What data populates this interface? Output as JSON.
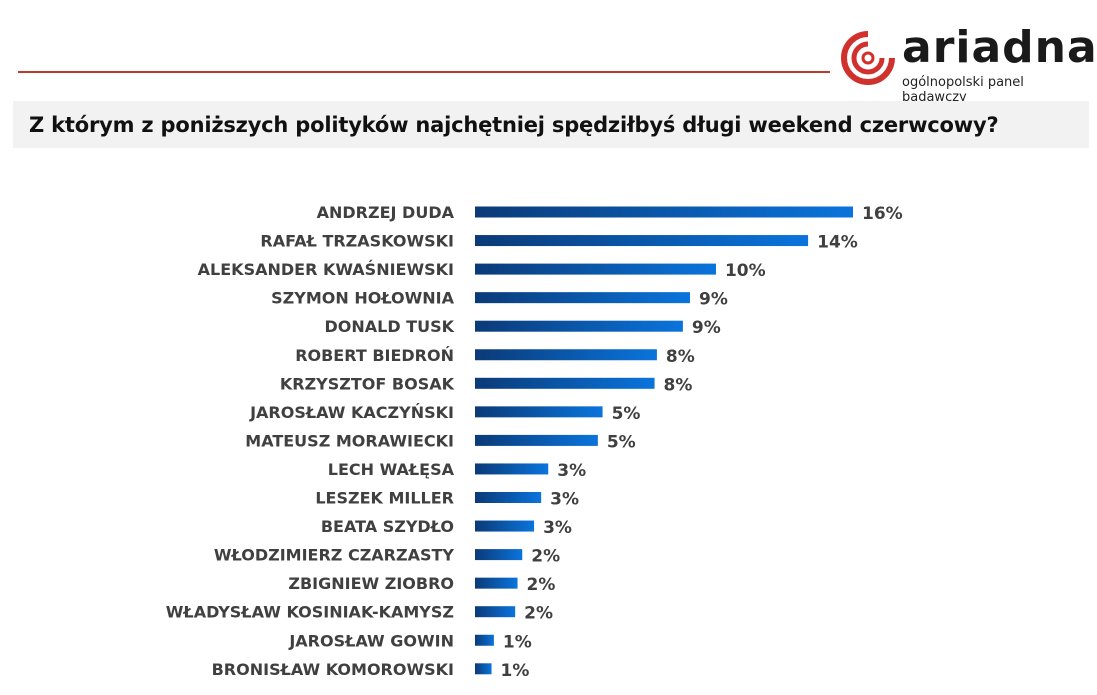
{
  "logo": {
    "text": "ariadna",
    "subtitle": "ogólnopolski panel badawczy",
    "color": "#d0312d"
  },
  "chart_data": {
    "type": "bar",
    "orientation": "horizontal",
    "title": "Z którym z poniższych polityków najchętniej spędziłbyś długi weekend czerwcowy?",
    "xlabel": "",
    "ylabel": "",
    "unit": "%",
    "categories": [
      "ANDRZEJ DUDA",
      "RAFAŁ TRZASKOWSKI",
      "ALEKSANDER KWAŚNIEWSKI",
      "SZYMON HOŁOWNIA",
      "DONALD TUSK",
      "ROBERT BIEDROŃ",
      "KRZYSZTOF BOSAK",
      "JAROSŁAW KACZYŃSKI",
      "MATEUSZ MORAWIECKI",
      "LECH WAŁĘSA",
      "LESZEK MILLER",
      "BEATA SZYDŁO",
      "WŁODZIMIERZ CZARZASTY",
      "ZBIGNIEW ZIOBRO",
      "WŁADYSŁAW KOSINIAK-KAMYSZ",
      "JAROSŁAW GOWIN",
      "BRONISŁAW KOMOROWSKI"
    ],
    "values": [
      16.0,
      14.1,
      10.2,
      9.1,
      8.8,
      7.7,
      7.6,
      5.4,
      5.2,
      3.1,
      2.8,
      2.5,
      2.0,
      1.8,
      1.7,
      0.8,
      0.7
    ],
    "labels": [
      "16%",
      "14%",
      "10%",
      "9%",
      "9%",
      "8%",
      "8%",
      "5%",
      "5%",
      "3%",
      "3%",
      "3%",
      "2%",
      "2%",
      "2%",
      "1%",
      "1%"
    ],
    "xlim": [
      0,
      16
    ],
    "grid": false,
    "legend": "none",
    "colors": {
      "bar_start": "#0b3a78",
      "bar_end": "#0a74dc"
    }
  }
}
